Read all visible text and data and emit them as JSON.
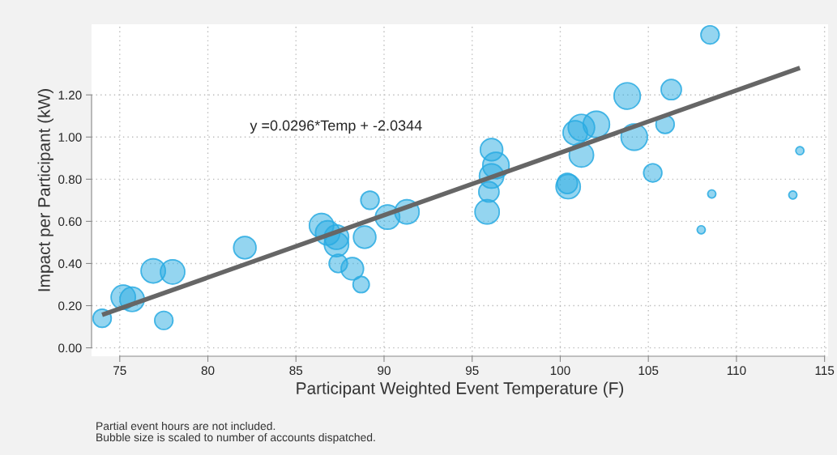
{
  "chart_data": {
    "type": "bubble",
    "xlabel": "Participant Weighted Event Temperature (F)",
    "ylabel": "Impact per Participant (kW)",
    "xlim": [
      73.4,
      115.2
    ],
    "ylim": [
      -0.04,
      1.535
    ],
    "xticks": [
      75,
      80,
      85,
      90,
      95,
      100,
      105,
      110,
      115
    ],
    "yticks": [
      {
        "value": 0,
        "label": "0.00"
      },
      {
        "value": 0.2,
        "label": "0.20"
      },
      {
        "value": 0.4,
        "label": "0.40"
      },
      {
        "value": 0.6,
        "label": "0.60"
      },
      {
        "value": 0.8,
        "label": "0.80"
      },
      {
        "value": 1.0,
        "label": "1.00"
      },
      {
        "value": 1.2,
        "label": "1.20"
      }
    ],
    "grid": true,
    "series": [
      {
        "color": "#29abe2",
        "x": [
          74.0,
          75.2,
          75.7,
          76.9,
          77.5,
          78.0,
          82.1,
          86.45,
          86.8,
          87.3,
          87.3,
          87.4,
          88.2,
          88.7,
          88.9,
          89.2,
          90.2,
          91.3,
          96.1,
          96.35,
          96.1,
          95.95,
          95.85,
          100.4,
          100.45,
          100.85,
          101.2,
          101.2,
          102.05,
          103.8,
          104.2,
          106.3,
          105.95,
          105.25,
          108.5,
          108.6,
          108.0,
          113.6,
          113.2
        ],
        "values": [
          0.14,
          0.24,
          0.23,
          0.365,
          0.13,
          0.36,
          0.475,
          0.58,
          0.545,
          0.525,
          0.49,
          0.4,
          0.375,
          0.3,
          0.525,
          0.7,
          0.62,
          0.645,
          0.94,
          0.865,
          0.815,
          0.74,
          0.645,
          0.78,
          0.765,
          1.02,
          1.045,
          0.915,
          1.06,
          1.195,
          1.0,
          1.225,
          1.06,
          0.83,
          1.485,
          0.73,
          0.56,
          0.935,
          0.725
        ],
        "sizes": [
          0.48,
          0.85,
          0.85,
          0.85,
          0.48,
          0.85,
          0.72,
          0.85,
          0.85,
          0.85,
          0.85,
          0.48,
          0.72,
          0.38,
          0.72,
          0.48,
          0.85,
          0.85,
          0.72,
          1.0,
          0.85,
          0.59,
          0.85,
          0.59,
          0.85,
          0.85,
          1.0,
          0.85,
          1.0,
          1.0,
          1.0,
          0.59,
          0.48,
          0.48,
          0.48,
          0.095,
          0.095,
          0.095,
          0.095
        ]
      },
      {
        "type": "line",
        "color": "#666666",
        "x": [
          74.0,
          113.6
        ],
        "values": [
          0.156,
          1.328
        ]
      }
    ],
    "annotations": [
      "y =0.0296*Temp + -2.0344",
      "Partial event hours are not included.",
      "Bubble size is scaled to number of accounts dispatched."
    ]
  }
}
